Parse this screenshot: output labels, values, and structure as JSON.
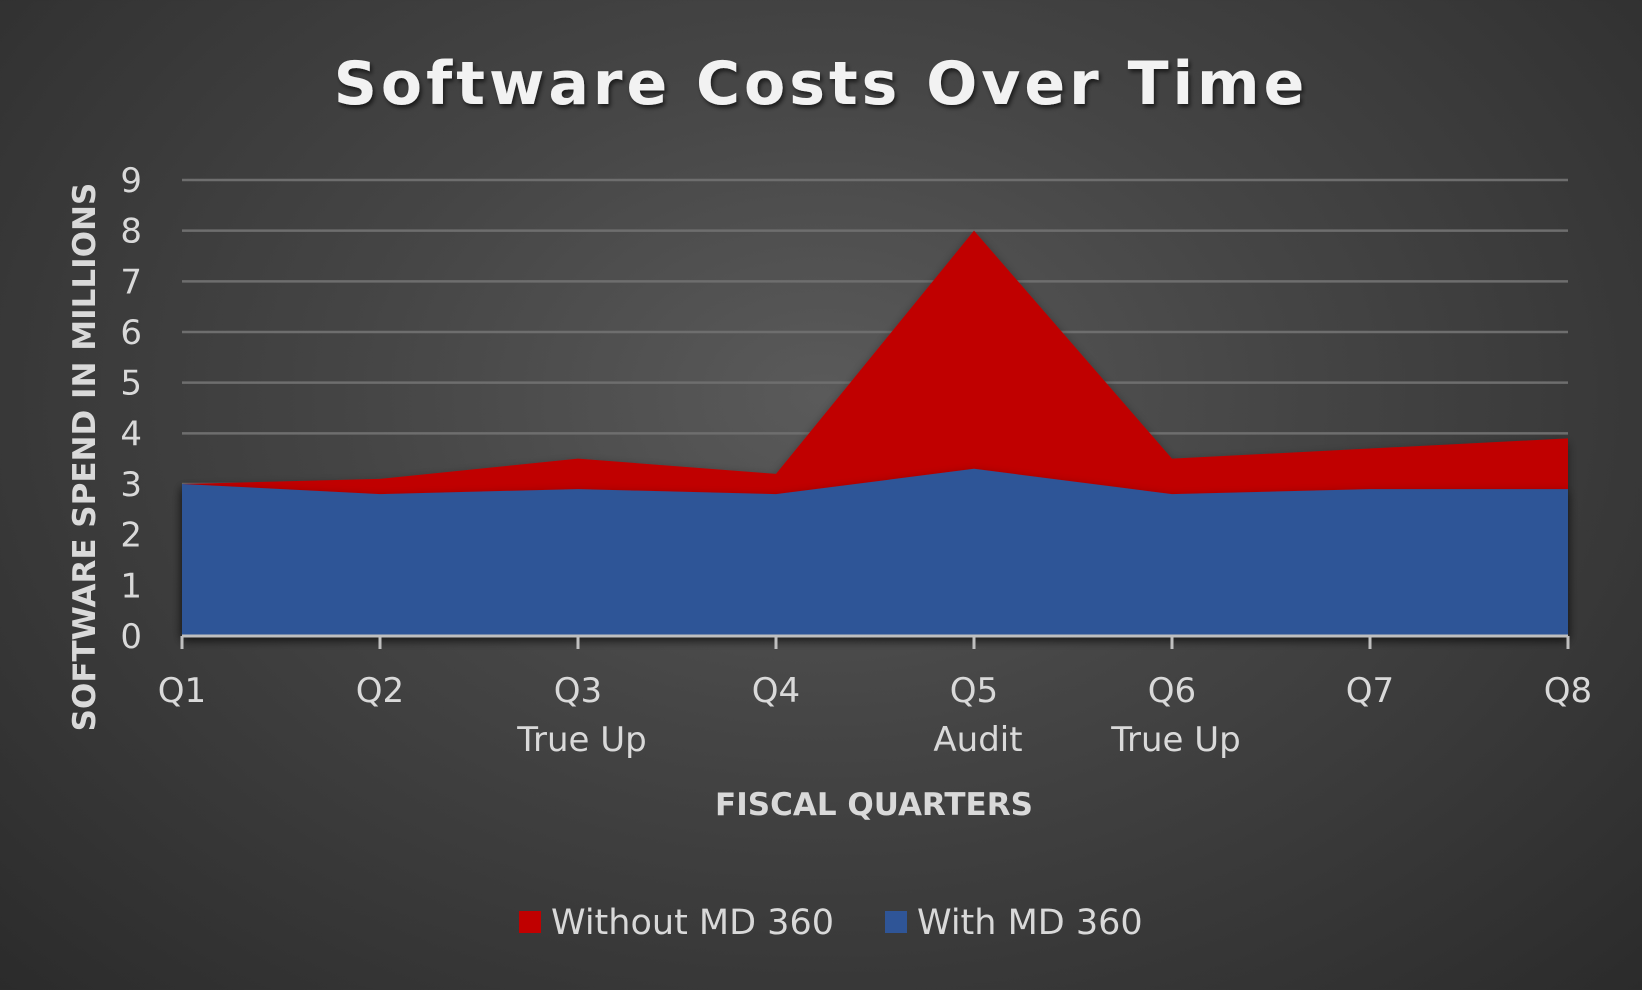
{
  "chart_data": {
    "type": "area",
    "title": "Software Costs Over Time",
    "xlabel": "FISCAL QUARTERS",
    "ylabel": "SOFTWARE SPEND IN MILLIONS",
    "categories": [
      "Q1",
      "Q2",
      "Q3",
      "Q4",
      "Q5",
      "Q6",
      "Q7",
      "Q8"
    ],
    "category_sublabels": [
      "",
      "",
      "True Up",
      "",
      "Audit",
      "True Up",
      "",
      ""
    ],
    "ylim": [
      0,
      9
    ],
    "yticks": [
      0,
      1,
      2,
      3,
      4,
      5,
      6,
      7,
      8,
      9
    ],
    "grid": true,
    "legend_position": "bottom",
    "series": [
      {
        "name": "Without MD 360",
        "color": "#c00000",
        "values": [
          3.0,
          3.1,
          3.5,
          3.2,
          8.0,
          3.5,
          3.7,
          3.9
        ]
      },
      {
        "name": "With MD 360",
        "color": "#2f5597",
        "values": [
          3.0,
          2.8,
          2.9,
          2.8,
          3.3,
          2.8,
          2.9,
          2.9
        ]
      }
    ]
  }
}
